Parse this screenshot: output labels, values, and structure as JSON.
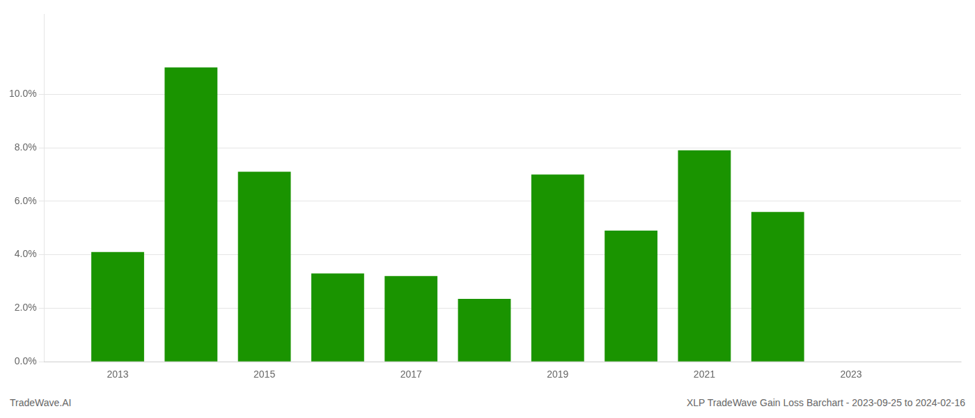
{
  "chart_data": {
    "type": "bar",
    "x": [
      2013,
      2014,
      2015,
      2016,
      2017,
      2018,
      2019,
      2020,
      2021,
      2022
    ],
    "values": [
      0.041,
      0.11,
      0.071,
      0.033,
      0.032,
      0.0235,
      0.07,
      0.049,
      0.079,
      0.056
    ],
    "color": "#1a9400",
    "xlim": [
      2012.0,
      2024.5
    ],
    "xticks": [
      2013,
      2015,
      2017,
      2019,
      2021,
      2023
    ],
    "ylim": [
      0,
      0.13
    ],
    "yticks": [
      {
        "value": 0.0,
        "label": "0.0%"
      },
      {
        "value": 0.02,
        "label": "2.0%"
      },
      {
        "value": 0.04,
        "label": "4.0%"
      },
      {
        "value": 0.06,
        "label": "6.0%"
      },
      {
        "value": 0.08,
        "label": "8.0%"
      },
      {
        "value": 0.1,
        "label": "10.0%"
      }
    ],
    "grid": true,
    "annotations": [
      "TradeWave.AI",
      "XLP TradeWave Gain Loss Barchart - 2023-09-25 to 2024-02-16"
    ]
  }
}
